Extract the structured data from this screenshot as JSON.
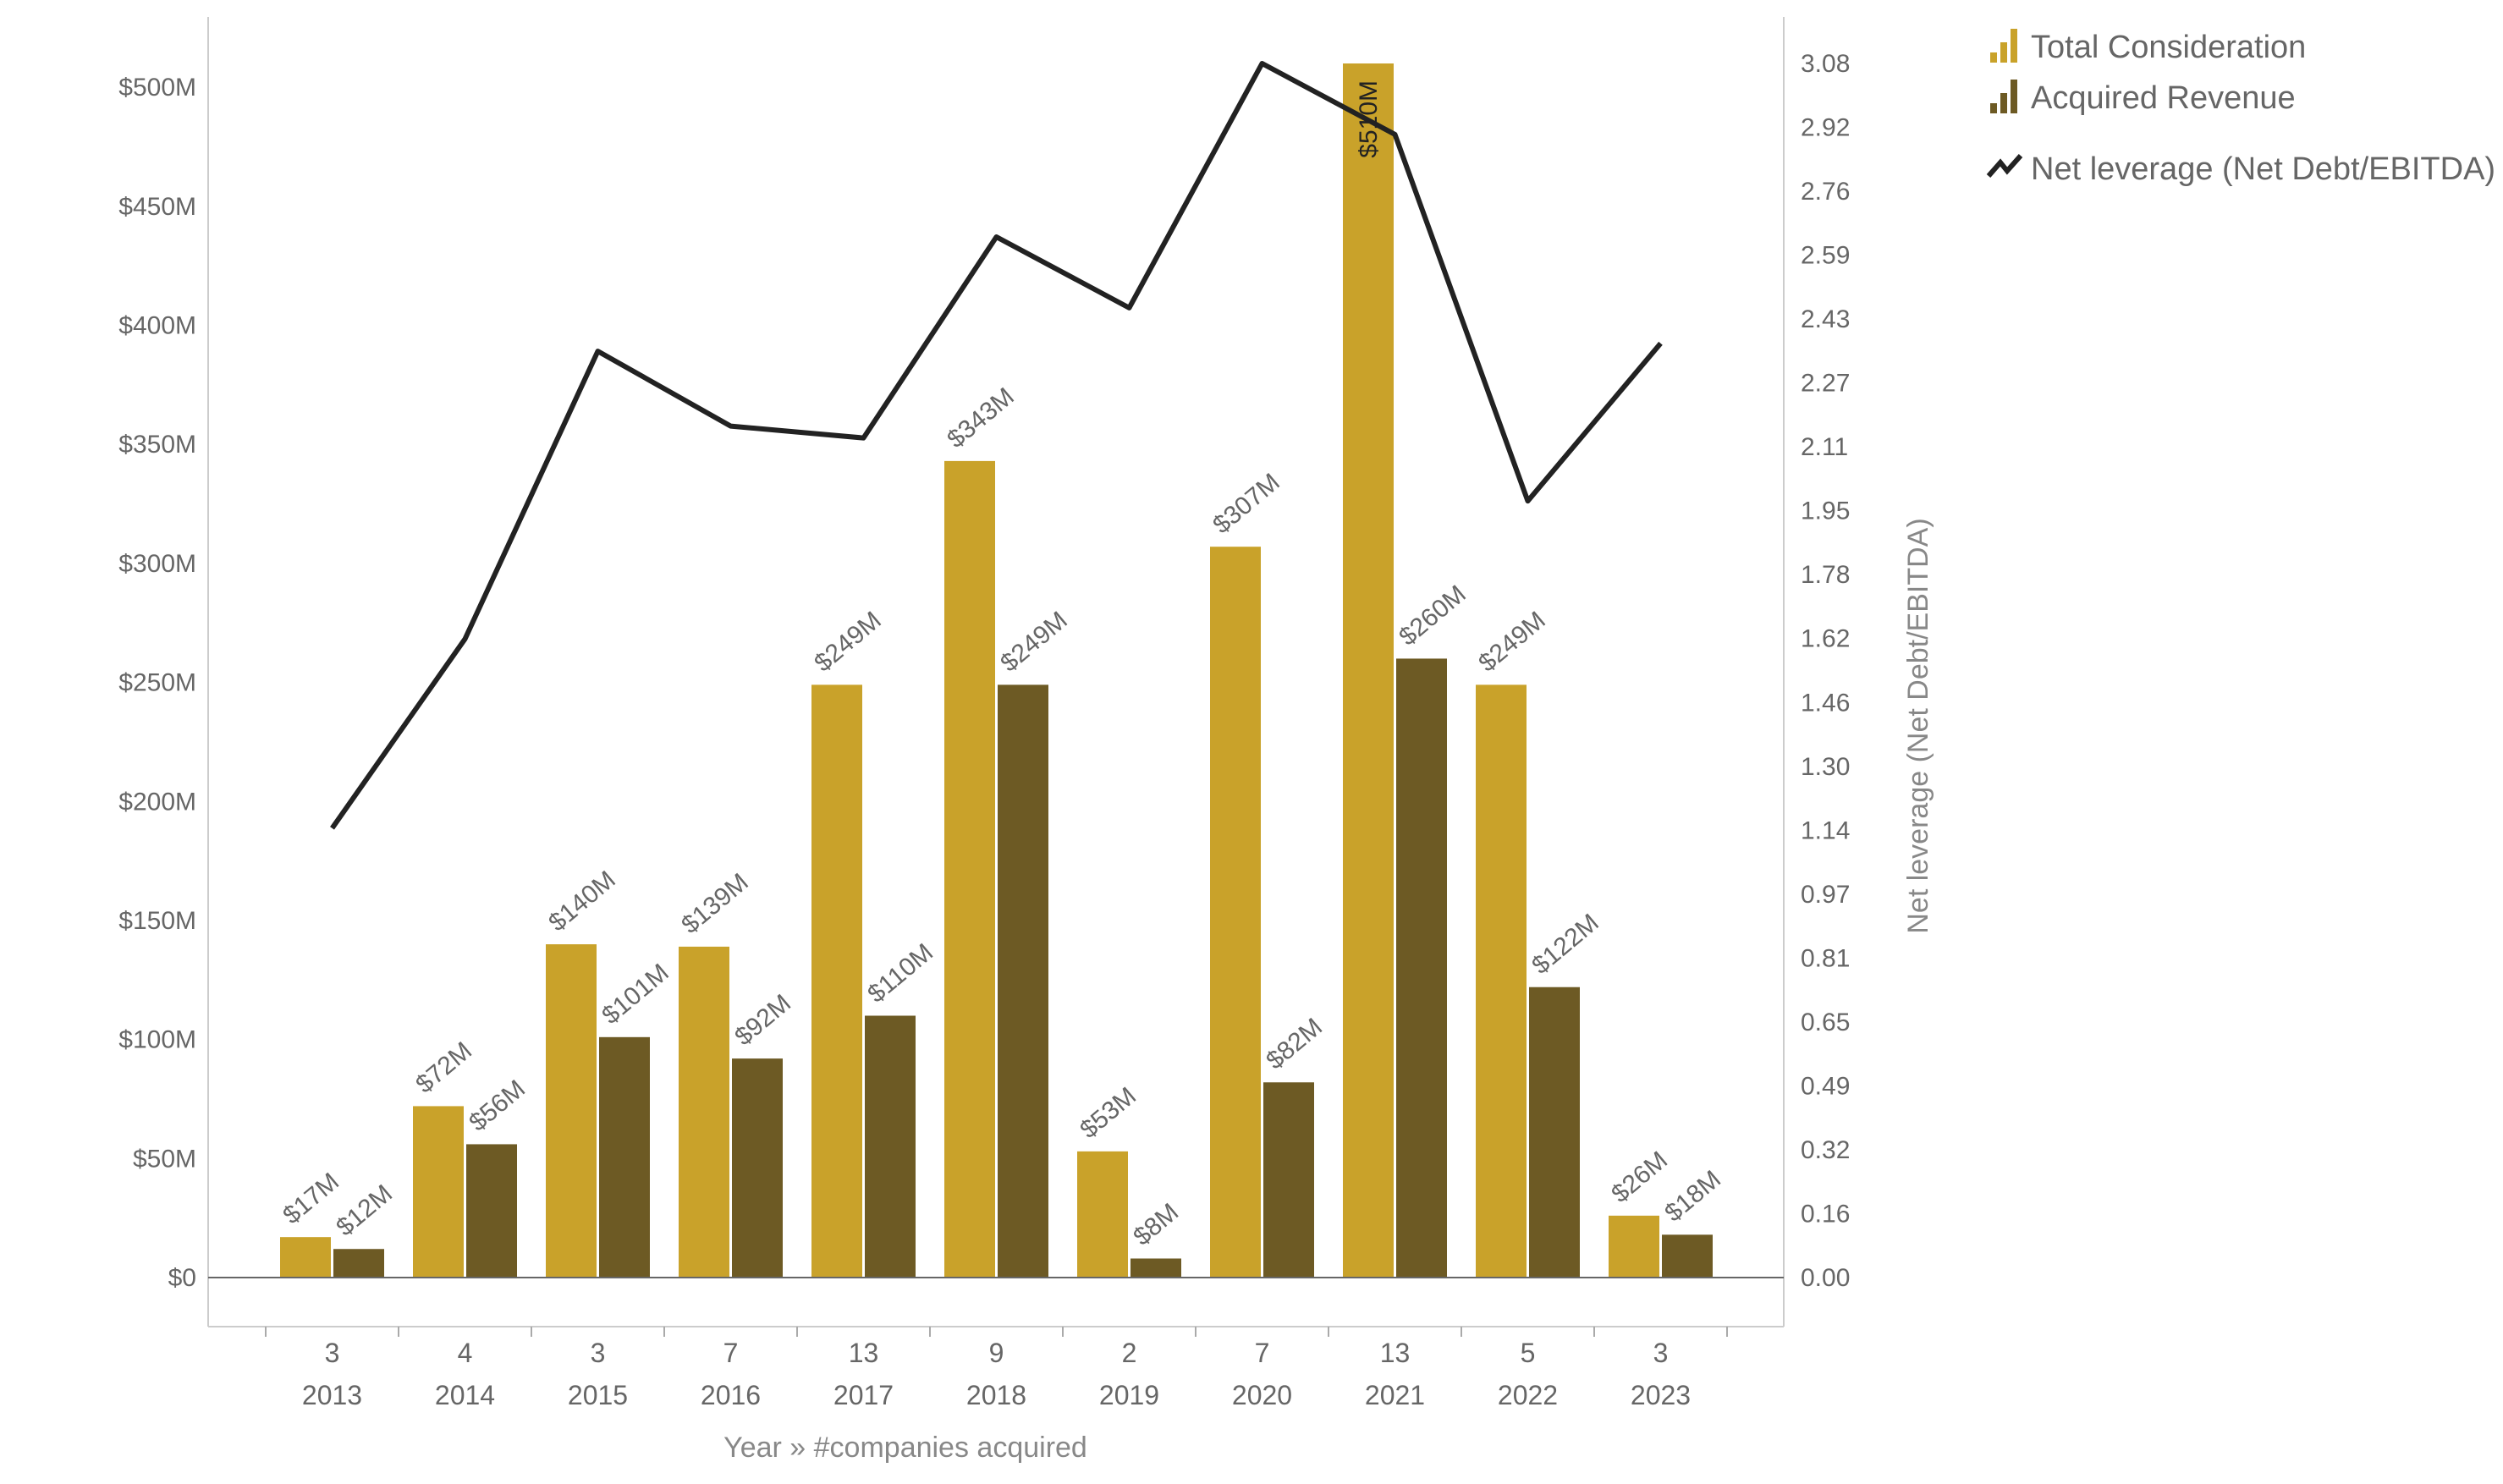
{
  "chart_data": {
    "type": "bar",
    "categories": [
      "2013",
      "2014",
      "2015",
      "2016",
      "2017",
      "2018",
      "2019",
      "2020",
      "2021",
      "2022",
      "2023"
    ],
    "companies_acquired": [
      "3",
      "4",
      "3",
      "7",
      "13",
      "9",
      "2",
      "7",
      "13",
      "5",
      "3"
    ],
    "series": [
      {
        "name": "Total Consideration",
        "kind": "bar",
        "axis": "left",
        "color": "#c9a22a",
        "values": [
          17,
          72,
          140,
          139,
          249,
          343,
          53,
          307,
          510,
          249,
          26
        ],
        "labels": [
          "$17M",
          "$72M",
          "$140M",
          "$139M",
          "$249M",
          "$343M",
          "$53M",
          "$307M",
          "$510M",
          "$249M",
          "$26M"
        ]
      },
      {
        "name": "Acquired Revenue",
        "kind": "bar",
        "axis": "left",
        "color": "#6d5a24",
        "values": [
          12,
          56,
          101,
          92,
          110,
          249,
          8,
          82,
          260,
          122,
          18
        ],
        "labels": [
          "$12M",
          "$56M",
          "$101M",
          "$92M",
          "$110M",
          "$249M",
          "$8M",
          "$82M",
          "$260M",
          "$122M",
          "$18M"
        ]
      },
      {
        "name": "Net leverage (Net Debt/EBITDA)",
        "kind": "line",
        "axis": "right",
        "color": "#222222",
        "values": [
          1.14,
          1.62,
          2.35,
          2.16,
          2.13,
          2.64,
          2.46,
          3.08,
          2.9,
          1.97,
          2.37
        ]
      }
    ],
    "y_left": {
      "ylim": [
        0,
        510
      ],
      "ticks": [
        0,
        50,
        100,
        150,
        200,
        250,
        300,
        350,
        400,
        450,
        500
      ],
      "tick_labels": [
        "$0",
        "$50M",
        "$100M",
        "$150M",
        "$200M",
        "$250M",
        "$300M",
        "$350M",
        "$400M",
        "$450M",
        "$500M"
      ]
    },
    "y_right": {
      "ylabel": "Net leverage (Net Debt/EBITDA)",
      "ylim": [
        0,
        3.08
      ],
      "tick_labels": [
        "0.00",
        "0.16",
        "0.32",
        "0.49",
        "0.65",
        "0.81",
        "0.97",
        "1.14",
        "1.30",
        "1.46",
        "1.62",
        "1.78",
        "1.95",
        "2.11",
        "2.27",
        "2.43",
        "2.59",
        "2.76",
        "2.92",
        "3.08"
      ]
    },
    "xlabel": "Year  »  #companies acquired",
    "legend_position": "top-right"
  }
}
